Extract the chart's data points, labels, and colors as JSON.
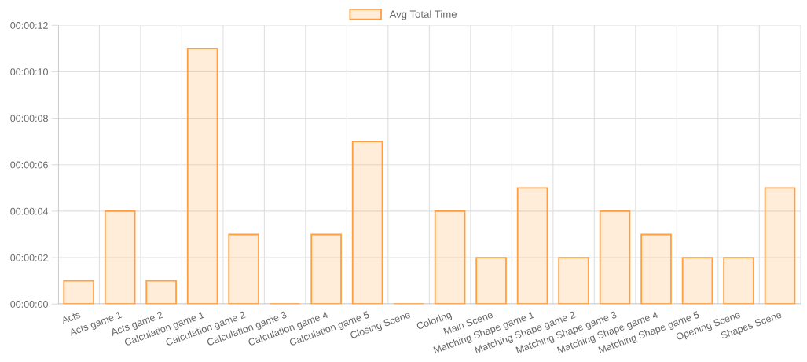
{
  "chart_data": {
    "type": "bar",
    "categories": [
      "Acts",
      "Acts game 1",
      "Acts game 2",
      "Calculation game 1",
      "Calculation game 2",
      "Calculation game 3",
      "Calculation game 4",
      "Calculation game 5",
      "Closing Scene",
      "Coloring",
      "Main Scene",
      "Matching Shape game 1",
      "Matching Shape game 2",
      "Matching Shape game 3",
      "Matching Shape game 4",
      "Matching Shape game 5",
      "Opening Scene",
      "Shapes Scene"
    ],
    "series": [
      {
        "name": "Avg Total Time",
        "color": "#ff9f40",
        "values": [
          1,
          4,
          1,
          11,
          3,
          0,
          3,
          7,
          0,
          4,
          2,
          5,
          2,
          4,
          3,
          2,
          2,
          5
        ]
      }
    ],
    "ylim": [
      0,
      12
    ],
    "yticks": [
      {
        "value": 0,
        "label": "00:00:00"
      },
      {
        "value": 2,
        "label": "00:00:02"
      },
      {
        "value": 4,
        "label": "00:00:04"
      },
      {
        "value": 6,
        "label": "00:00:06"
      },
      {
        "value": 8,
        "label": "00:00:08"
      },
      {
        "value": 10,
        "label": "00:00:10"
      },
      {
        "value": 12,
        "label": "00:00:12"
      }
    ],
    "grid": true,
    "legend": "top"
  }
}
